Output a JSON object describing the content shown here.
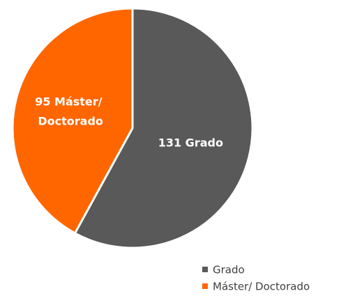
{
  "chart_data": {
    "type": "pie",
    "categories": [
      "Grado",
      "Máster/ Doctorado"
    ],
    "values": [
      131,
      95
    ],
    "value_labels": [
      "131 Grado",
      "95 Máster/ Doctorado"
    ],
    "colors": [
      "#595959",
      "#ff6600"
    ],
    "legend": "bottom-right"
  }
}
